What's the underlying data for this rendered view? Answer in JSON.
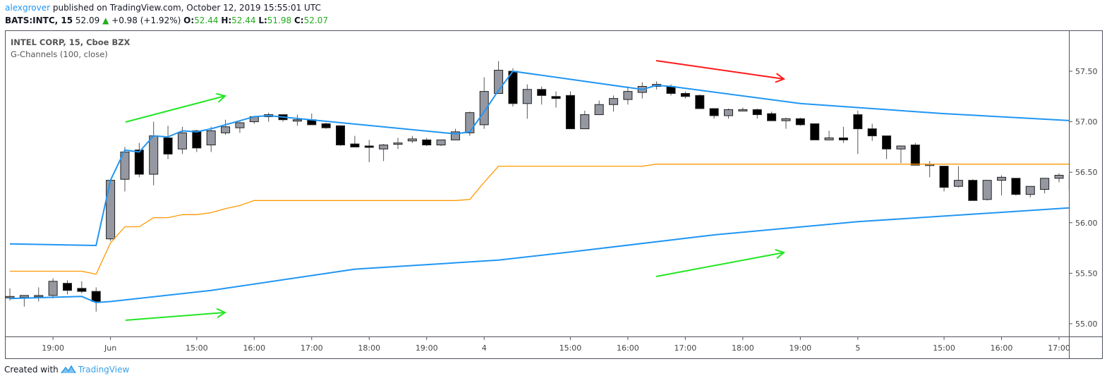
{
  "header": {
    "author": "alexgrover",
    "published_text": "published on TradingView.com, October 12, 2019 15:55:01 UTC",
    "symbol": "BATS:INTC, 15",
    "last_price": "52.09",
    "change": "+0.98 (+1.92%)",
    "open_label": "O:",
    "open": "52.44",
    "high_label": "H:",
    "high": "52.44",
    "low_label": "L:",
    "low": "51.98",
    "close_label": "C:",
    "close": "52.07"
  },
  "legend": {
    "title": "INTEL CORP, 15, Cboe BZX",
    "indicator": "G-Channels (100, close)"
  },
  "footer": {
    "created_with": "Created with",
    "brand": "TradingView"
  },
  "colors": {
    "up_candle": "#9598a1",
    "down_candle": "#000000",
    "channel_upper_lower": "#2196f3",
    "channel_mid": "#ff9800",
    "arrow_up": "#22e622",
    "arrow_down": "#ff1a1a",
    "price_up": "#22ab1e"
  },
  "chart_data": {
    "type": "candlestick",
    "ylim": [
      54.874,
      57.905
    ],
    "y_ticks": [
      "57.50",
      "57.00",
      "56.50",
      "56.00",
      "55.50",
      "55.00"
    ],
    "x_ticks": [
      {
        "bar": 3,
        "label": "19:00"
      },
      {
        "bar": 7,
        "label": "Jun"
      },
      {
        "bar": 13,
        "label": "15:00"
      },
      {
        "bar": 17,
        "label": "16:00"
      },
      {
        "bar": 21,
        "label": "17:00"
      },
      {
        "bar": 25,
        "label": "18:00"
      },
      {
        "bar": 29,
        "label": "19:00"
      },
      {
        "bar": 33,
        "label": "4"
      },
      {
        "bar": 39,
        "label": "15:00"
      },
      {
        "bar": 43,
        "label": "16:00"
      },
      {
        "bar": 47,
        "label": "17:00"
      },
      {
        "bar": 51,
        "label": "18:00"
      },
      {
        "bar": 55,
        "label": "19:00"
      },
      {
        "bar": 59,
        "label": "5"
      },
      {
        "bar": 65,
        "label": "15:00"
      },
      {
        "bar": 69,
        "label": "16:00"
      },
      {
        "bar": 73,
        "label": "17:00"
      }
    ],
    "ohlc": [
      [
        55.27,
        55.35,
        55.23,
        55.27
      ],
      [
        55.26,
        55.28,
        55.17,
        55.28
      ],
      [
        55.28,
        55.36,
        55.22,
        55.28
      ],
      [
        55.28,
        55.45,
        55.25,
        55.42
      ],
      [
        55.4,
        55.43,
        55.29,
        55.33
      ],
      [
        55.35,
        55.42,
        55.3,
        55.32
      ],
      [
        55.32,
        55.36,
        55.12,
        55.22
      ],
      [
        55.84,
        56.43,
        55.82,
        56.42
      ],
      [
        56.43,
        56.75,
        56.31,
        56.7
      ],
      [
        56.72,
        56.79,
        56.45,
        56.48
      ],
      [
        56.48,
        57.0,
        56.37,
        56.86
      ],
      [
        56.84,
        56.96,
        56.63,
        56.68
      ],
      [
        56.73,
        56.95,
        56.68,
        56.89
      ],
      [
        56.91,
        56.92,
        56.7,
        56.74
      ],
      [
        56.77,
        56.95,
        56.7,
        56.91
      ],
      [
        56.89,
        57.02,
        56.87,
        56.95
      ],
      [
        56.94,
        57.0,
        56.89,
        56.99
      ],
      [
        57.0,
        57.05,
        56.98,
        57.05
      ],
      [
        57.05,
        57.09,
        57.0,
        57.07
      ],
      [
        57.07,
        57.07,
        57.0,
        57.02
      ],
      [
        57.02,
        57.07,
        56.96,
        57.02
      ],
      [
        57.02,
        57.08,
        56.97,
        56.97
      ],
      [
        56.98,
        56.99,
        56.93,
        56.94
      ],
      [
        56.96,
        56.96,
        56.76,
        56.77
      ],
      [
        56.78,
        56.86,
        56.75,
        56.75
      ],
      [
        56.76,
        56.82,
        56.6,
        56.75
      ],
      [
        56.73,
        56.78,
        56.61,
        56.77
      ],
      [
        56.79,
        56.84,
        56.73,
        56.79
      ],
      [
        56.81,
        56.86,
        56.79,
        56.83
      ],
      [
        56.82,
        56.84,
        56.76,
        56.77
      ],
      [
        56.77,
        56.82,
        56.76,
        56.82
      ],
      [
        56.82,
        56.93,
        56.82,
        56.9
      ],
      [
        56.89,
        57.1,
        56.86,
        57.09
      ],
      [
        56.97,
        57.44,
        56.93,
        57.3
      ],
      [
        57.28,
        57.6,
        57.28,
        57.51
      ],
      [
        57.5,
        57.53,
        57.15,
        57.18
      ],
      [
        57.18,
        57.37,
        57.03,
        57.32
      ],
      [
        57.32,
        57.35,
        57.17,
        57.26
      ],
      [
        57.25,
        57.3,
        57.14,
        57.23
      ],
      [
        57.26,
        57.3,
        56.93,
        56.93
      ],
      [
        56.93,
        57.11,
        56.93,
        57.07
      ],
      [
        57.07,
        57.21,
        57.07,
        57.17
      ],
      [
        57.17,
        57.26,
        57.1,
        57.23
      ],
      [
        57.22,
        57.35,
        57.17,
        57.3
      ],
      [
        57.29,
        57.39,
        57.23,
        57.35
      ],
      [
        57.35,
        57.4,
        57.32,
        57.37
      ],
      [
        57.35,
        57.37,
        57.26,
        57.28
      ],
      [
        57.28,
        57.3,
        57.23,
        57.25
      ],
      [
        57.26,
        57.27,
        57.13,
        57.13
      ],
      [
        57.13,
        57.13,
        57.03,
        57.06
      ],
      [
        57.06,
        57.13,
        57.03,
        57.12
      ],
      [
        57.12,
        57.14,
        57.11,
        57.12
      ],
      [
        57.12,
        57.13,
        57.03,
        57.07
      ],
      [
        57.08,
        57.1,
        57.01,
        57.01
      ],
      [
        57.01,
        57.04,
        56.93,
        57.03
      ],
      [
        57.03,
        57.04,
        56.96,
        56.97
      ],
      [
        56.98,
        56.98,
        56.82,
        56.82
      ],
      [
        56.82,
        56.91,
        56.82,
        56.84
      ],
      [
        56.84,
        56.95,
        56.79,
        56.82
      ],
      [
        57.07,
        57.11,
        56.68,
        56.93
      ],
      [
        56.93,
        56.98,
        56.81,
        56.86
      ],
      [
        56.86,
        56.86,
        56.63,
        56.73
      ],
      [
        56.73,
        56.76,
        56.59,
        56.76
      ],
      [
        56.77,
        56.79,
        56.57,
        56.57
      ],
      [
        56.58,
        56.61,
        56.45,
        56.58
      ],
      [
        56.56,
        56.56,
        56.31,
        56.35
      ],
      [
        56.36,
        56.56,
        56.35,
        56.42
      ],
      [
        56.42,
        56.43,
        56.22,
        56.22
      ],
      [
        56.23,
        56.42,
        56.22,
        56.42
      ],
      [
        56.42,
        56.47,
        56.27,
        56.45
      ],
      [
        56.44,
        56.44,
        56.27,
        56.28
      ],
      [
        56.28,
        56.36,
        56.25,
        56.36
      ],
      [
        56.33,
        56.44,
        56.29,
        56.44
      ],
      [
        56.44,
        56.49,
        56.4,
        56.47
      ],
      [
        56.47,
        56.48,
        56.3,
        56.33
      ]
    ],
    "g_channel_upper": [
      [
        0,
        55.79
      ],
      [
        6,
        55.775
      ],
      [
        7,
        56.42
      ],
      [
        8,
        56.72
      ],
      [
        9,
        56.7
      ],
      [
        10,
        56.86
      ],
      [
        11,
        56.85
      ],
      [
        12,
        56.91
      ],
      [
        13,
        56.9
      ],
      [
        14,
        56.93
      ],
      [
        15,
        56.97
      ],
      [
        16,
        57.01
      ],
      [
        17,
        57.05
      ],
      [
        18,
        57.06
      ],
      [
        31,
        56.88
      ],
      [
        32,
        56.9
      ],
      [
        33,
        57.1
      ],
      [
        34,
        57.31
      ],
      [
        35,
        57.5
      ],
      [
        44,
        57.32
      ],
      [
        45,
        57.36
      ],
      [
        46,
        57.35
      ],
      [
        55,
        57.18
      ],
      [
        65,
        57.08
      ],
      [
        74,
        57.01
      ]
    ],
    "g_channel_mid": [
      [
        0,
        55.52
      ],
      [
        5,
        55.52
      ],
      [
        6,
        55.49
      ],
      [
        7,
        55.8
      ],
      [
        8,
        55.96
      ],
      [
        9,
        55.96
      ],
      [
        10,
        56.05
      ],
      [
        11,
        56.05
      ],
      [
        12,
        56.08
      ],
      [
        13,
        56.08
      ],
      [
        14,
        56.1
      ],
      [
        15,
        56.14
      ],
      [
        16,
        56.17
      ],
      [
        17,
        56.22
      ],
      [
        31,
        56.22
      ],
      [
        32,
        56.23
      ],
      [
        33,
        56.4
      ],
      [
        34,
        56.56
      ],
      [
        44,
        56.56
      ],
      [
        45,
        56.58
      ],
      [
        74,
        56.58
      ]
    ],
    "g_channel_lower": [
      [
        0,
        55.25
      ],
      [
        5,
        55.27
      ],
      [
        6,
        55.21
      ],
      [
        7,
        55.22
      ],
      [
        14,
        55.33
      ],
      [
        24,
        55.54
      ],
      [
        34,
        55.63
      ],
      [
        39,
        55.71
      ],
      [
        49,
        55.88
      ],
      [
        59,
        56.01
      ],
      [
        74,
        56.15
      ]
    ]
  }
}
